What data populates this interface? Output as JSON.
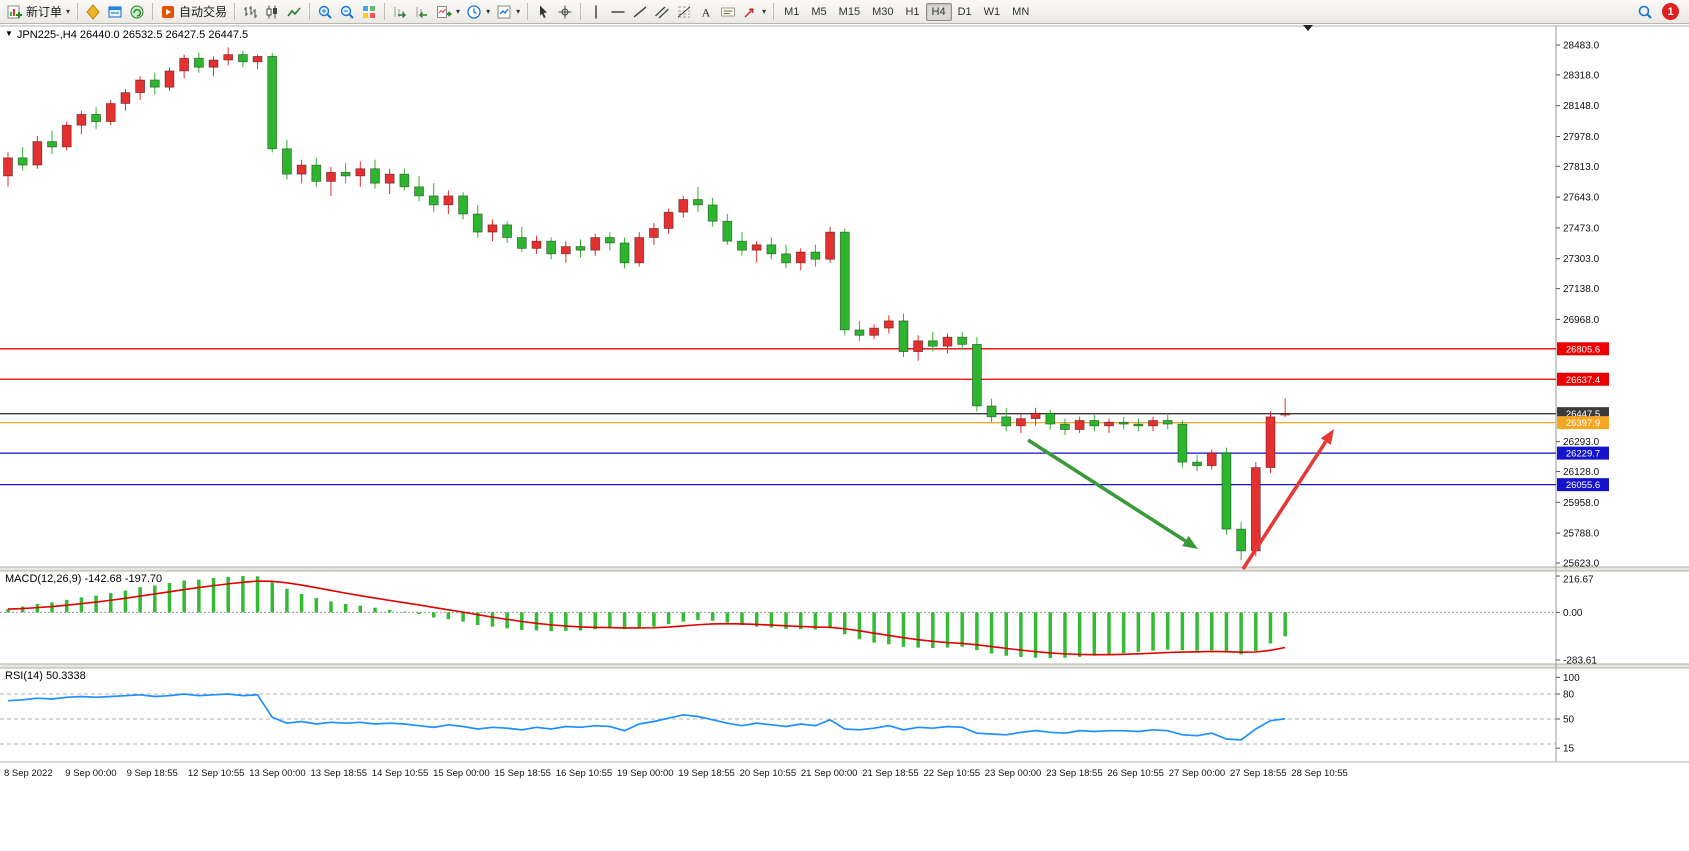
{
  "toolbar": {
    "new_order_label": "新订单",
    "auto_trading_label": "自动交易",
    "text_tool_glyph": "A",
    "timeframes": [
      {
        "label": "M1",
        "active": false
      },
      {
        "label": "M5",
        "active": false
      },
      {
        "label": "M15",
        "active": false
      },
      {
        "label": "M30",
        "active": false
      },
      {
        "label": "H1",
        "active": false
      },
      {
        "label": "H4",
        "active": true
      },
      {
        "label": "D1",
        "active": false
      },
      {
        "label": "W1",
        "active": false
      },
      {
        "label": "MN",
        "active": false
      }
    ],
    "notification_count": "1"
  },
  "chart": {
    "title": "JPN225-,H4 26440.0 26532.5 26427.5 26447.5",
    "symbol": "JPN225-",
    "timeframe": "H4",
    "ohlc": {
      "open": "26440.0",
      "high": "26532.5",
      "low": "26427.5",
      "close": "26447.5"
    }
  },
  "chart_data": {
    "type": "candlestick",
    "symbol": "JPN225-",
    "timeframe": "H4",
    "colors": {
      "bull": "#e53030",
      "bear": "#2eb52e",
      "macd_hist": "#33bb33",
      "macd_signal": "#e00000",
      "rsi": "#1e90ff",
      "line_red": "#ee0000",
      "line_blue": "#1414cc",
      "line_orange": "#f5a623",
      "line_current": "#3a3a3a"
    },
    "price_axis": {
      "max": 28483.0,
      "min": 25623.0,
      "ticks": [
        28483.0,
        28318.0,
        28148.0,
        27978.0,
        27813.0,
        27643.0,
        27473.0,
        27303.0,
        27138.0,
        26968.0,
        26293.0,
        26128.0,
        25958.0,
        25788.0,
        25623.0
      ]
    },
    "lines": [
      {
        "price": 26805.6,
        "color": "#ee0000",
        "label": "26805.6"
      },
      {
        "price": 26637.4,
        "color": "#ee0000",
        "label": "26637.4"
      },
      {
        "price": 26447.5,
        "color": "#3a3a3a",
        "label": "26447.5",
        "role": "current-price"
      },
      {
        "price": 26397.9,
        "color": "#f5a623",
        "label": "26397.9"
      },
      {
        "price": 26229.7,
        "color": "#1414cc",
        "label": "26229.7"
      },
      {
        "price": 26055.6,
        "color": "#1414cc",
        "label": "26055.6"
      }
    ],
    "arrows": [
      {
        "name": "down-trend-arrow",
        "color": "#3a9a3a",
        "from": [
          1028,
          440
        ],
        "to": [
          1198,
          549
        ]
      },
      {
        "name": "up-reversal-arrow",
        "color": "#e53935",
        "from": [
          1243,
          569
        ],
        "to": [
          1334,
          429
        ]
      }
    ],
    "candles": [
      [
        27760,
        27890,
        27700,
        27860
      ],
      [
        27860,
        27920,
        27790,
        27820
      ],
      [
        27820,
        27980,
        27800,
        27950
      ],
      [
        27950,
        28010,
        27880,
        27920
      ],
      [
        27920,
        28060,
        27900,
        28040
      ],
      [
        28040,
        28120,
        27990,
        28100
      ],
      [
        28100,
        28140,
        28020,
        28060
      ],
      [
        28060,
        28180,
        28040,
        28160
      ],
      [
        28160,
        28240,
        28120,
        28220
      ],
      [
        28220,
        28310,
        28180,
        28290
      ],
      [
        28290,
        28330,
        28210,
        28250
      ],
      [
        28250,
        28360,
        28230,
        28340
      ],
      [
        28340,
        28430,
        28300,
        28410
      ],
      [
        28410,
        28440,
        28330,
        28360
      ],
      [
        28360,
        28420,
        28310,
        28400
      ],
      [
        28400,
        28470,
        28370,
        28430
      ],
      [
        28430,
        28450,
        28360,
        28390
      ],
      [
        28390,
        28430,
        28350,
        28420
      ],
      [
        28420,
        28440,
        27890,
        27910
      ],
      [
        27910,
        27960,
        27740,
        27770
      ],
      [
        27770,
        27850,
        27720,
        27820
      ],
      [
        27820,
        27860,
        27700,
        27730
      ],
      [
        27730,
        27810,
        27650,
        27780
      ],
      [
        27780,
        27830,
        27720,
        27760
      ],
      [
        27760,
        27840,
        27700,
        27800
      ],
      [
        27800,
        27850,
        27690,
        27720
      ],
      [
        27720,
        27800,
        27660,
        27770
      ],
      [
        27770,
        27800,
        27680,
        27700
      ],
      [
        27700,
        27760,
        27620,
        27650
      ],
      [
        27650,
        27720,
        27560,
        27600
      ],
      [
        27600,
        27680,
        27550,
        27650
      ],
      [
        27650,
        27670,
        27520,
        27550
      ],
      [
        27550,
        27600,
        27420,
        27450
      ],
      [
        27450,
        27520,
        27400,
        27490
      ],
      [
        27490,
        27510,
        27390,
        27420
      ],
      [
        27420,
        27480,
        27340,
        27360
      ],
      [
        27360,
        27430,
        27330,
        27400
      ],
      [
        27400,
        27420,
        27300,
        27330
      ],
      [
        27330,
        27400,
        27280,
        27370
      ],
      [
        27370,
        27410,
        27310,
        27350
      ],
      [
        27350,
        27440,
        27320,
        27420
      ],
      [
        27420,
        27450,
        27350,
        27390
      ],
      [
        27390,
        27420,
        27250,
        27280
      ],
      [
        27280,
        27450,
        27260,
        27420
      ],
      [
        27420,
        27500,
        27380,
        27470
      ],
      [
        27470,
        27580,
        27440,
        27560
      ],
      [
        27560,
        27650,
        27530,
        27630
      ],
      [
        27630,
        27700,
        27560,
        27600
      ],
      [
        27600,
        27640,
        27480,
        27510
      ],
      [
        27510,
        27550,
        27380,
        27400
      ],
      [
        27400,
        27450,
        27320,
        27350
      ],
      [
        27350,
        27400,
        27280,
        27380
      ],
      [
        27380,
        27420,
        27300,
        27330
      ],
      [
        27330,
        27380,
        27250,
        27280
      ],
      [
        27280,
        27360,
        27240,
        27340
      ],
      [
        27340,
        27380,
        27260,
        27300
      ],
      [
        27300,
        27480,
        27280,
        27450
      ],
      [
        27450,
        27470,
        26880,
        26910
      ],
      [
        26910,
        26960,
        26850,
        26880
      ],
      [
        26880,
        26940,
        26860,
        26920
      ],
      [
        26920,
        26990,
        26890,
        26960
      ],
      [
        26960,
        27000,
        26760,
        26790
      ],
      [
        26790,
        26880,
        26740,
        26850
      ],
      [
        26850,
        26900,
        26790,
        26820
      ],
      [
        26820,
        26890,
        26780,
        26870
      ],
      [
        26870,
        26900,
        26800,
        26830
      ],
      [
        26830,
        26870,
        26460,
        26490
      ],
      [
        26490,
        26530,
        26400,
        26430
      ],
      [
        26430,
        26480,
        26350,
        26380
      ],
      [
        26380,
        26450,
        26340,
        26420
      ],
      [
        26420,
        26480,
        26380,
        26450
      ],
      [
        26450,
        26470,
        26360,
        26390
      ],
      [
        26390,
        26420,
        26330,
        26360
      ],
      [
        26360,
        26430,
        26340,
        26410
      ],
      [
        26410,
        26440,
        26350,
        26380
      ],
      [
        26380,
        26420,
        26340,
        26400
      ],
      [
        26400,
        26430,
        26360,
        26390
      ],
      [
        26390,
        26420,
        26350,
        26380
      ],
      [
        26380,
        26430,
        26350,
        26410
      ],
      [
        26410,
        26440,
        26360,
        26390
      ],
      [
        26390,
        26410,
        26150,
        26180
      ],
      [
        26180,
        26220,
        26130,
        26160
      ],
      [
        26160,
        26250,
        26140,
        26230
      ],
      [
        26230,
        26260,
        25780,
        25810
      ],
      [
        25810,
        25850,
        25640,
        25690
      ],
      [
        25690,
        26180,
        25660,
        26150
      ],
      [
        26150,
        26460,
        26120,
        26430
      ],
      [
        26440,
        26532.5,
        26427.5,
        26447.5
      ]
    ],
    "macd": {
      "label": "MACD(12,26,9) -142.68 -197.70",
      "params": "12,26,9",
      "main_value": -142.68,
      "signal_value": -197.7,
      "axis_ticks": [
        216.67,
        0.0,
        -283.61
      ],
      "values": [
        20,
        35,
        50,
        60,
        75,
        90,
        100,
        115,
        130,
        150,
        160,
        175,
        190,
        195,
        205,
        212,
        217,
        215,
        180,
        140,
        110,
        85,
        65,
        50,
        40,
        28,
        15,
        5,
        -10,
        -30,
        -40,
        -55,
        -75,
        -85,
        -95,
        -105,
        -108,
        -112,
        -110,
        -108,
        -100,
        -95,
        -100,
        -95,
        -85,
        -70,
        -55,
        -45,
        -50,
        -60,
        -75,
        -85,
        -90,
        -98,
        -100,
        -102,
        -95,
        -130,
        -160,
        -180,
        -190,
        -205,
        -210,
        -212,
        -210,
        -205,
        -225,
        -245,
        -258,
        -265,
        -270,
        -272,
        -270,
        -265,
        -258,
        -250,
        -242,
        -235,
        -228,
        -222,
        -225,
        -228,
        -225,
        -240,
        -250,
        -230,
        -185,
        -142.68
      ]
    },
    "rsi": {
      "label": "RSI(14) 50.3338",
      "period": 14,
      "value": 50.3338,
      "axis_ticks": [
        100,
        80,
        50,
        15
      ],
      "levels": [
        80,
        50,
        20
      ],
      "values": [
        72,
        73,
        75,
        74,
        76,
        77,
        76,
        77,
        78,
        79,
        77,
        78,
        80,
        78,
        79,
        80,
        78,
        79,
        52,
        45,
        47,
        44,
        46,
        45,
        46,
        44,
        45,
        44,
        42,
        40,
        43,
        41,
        38,
        40,
        39,
        37,
        40,
        38,
        41,
        40,
        42,
        41,
        36,
        44,
        47,
        51,
        55,
        53,
        49,
        45,
        42,
        45,
        43,
        41,
        44,
        42,
        49,
        38,
        37,
        39,
        42,
        37,
        40,
        39,
        41,
        40,
        33,
        32,
        31,
        34,
        36,
        34,
        33,
        36,
        35,
        36,
        36,
        35,
        37,
        36,
        31,
        30,
        33,
        26,
        25,
        38,
        48,
        50.33
      ]
    },
    "time_labels": [
      "8 Sep 2022",
      "9 Sep 00:00",
      "9 Sep 18:55",
      "12 Sep 10:55",
      "13 Sep 00:00",
      "13 Sep 18:55",
      "14 Sep 10:55",
      "15 Sep 00:00",
      "15 Sep 18:55",
      "16 Sep 10:55",
      "19 Sep 00:00",
      "19 Sep 18:55",
      "20 Sep 10:55",
      "21 Sep 00:00",
      "21 Sep 18:55",
      "22 Sep 10:55",
      "23 Sep 00:00",
      "23 Sep 18:55",
      "26 Sep 10:55",
      "27 Sep 00:00",
      "27 Sep 18:55",
      "28 Sep 10:55"
    ]
  }
}
